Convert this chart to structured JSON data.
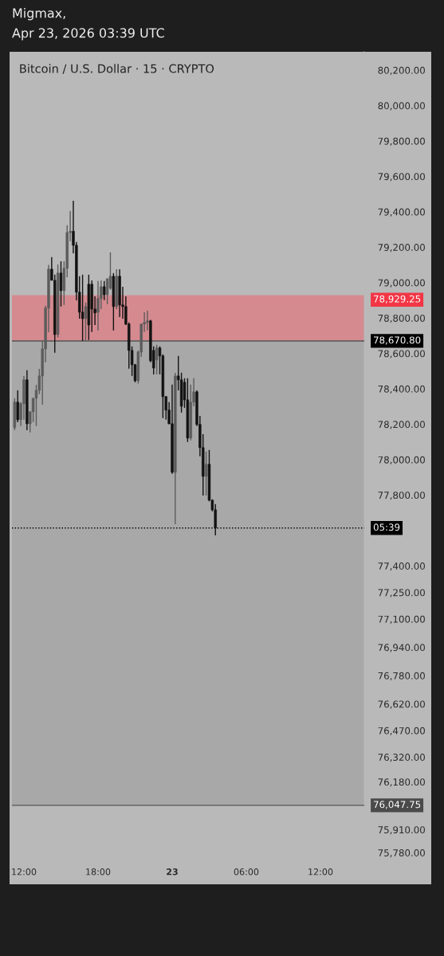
{
  "chart_data": {
    "type": "candlestick",
    "title": "Bitcoin / U.S. Dollar · 15 · CRYPTO",
    "annotations": [
      "Migmax,",
      "Apr 23, 2026 03:39 UTC",
      "05:39"
    ],
    "x": [
      "2026-04-22T11:15",
      "2026-04-22T11:30",
      "2026-04-22T11:45",
      "2026-04-22T12:00",
      "2026-04-22T12:15",
      "2026-04-22T12:30",
      "2026-04-22T12:45",
      "2026-04-22T13:00",
      "2026-04-22T13:15",
      "2026-04-22T13:30",
      "2026-04-22T13:45",
      "2026-04-22T14:00",
      "2026-04-22T14:15",
      "2026-04-22T14:30",
      "2026-04-22T14:45",
      "2026-04-22T15:00",
      "2026-04-22T15:15",
      "2026-04-22T15:30",
      "2026-04-22T15:45",
      "2026-04-22T16:00",
      "2026-04-22T16:15",
      "2026-04-22T16:30",
      "2026-04-22T16:45",
      "2026-04-22T17:00",
      "2026-04-22T17:15",
      "2026-04-22T17:30",
      "2026-04-22T17:45",
      "2026-04-22T18:00",
      "2026-04-22T18:15",
      "2026-04-22T18:30",
      "2026-04-22T18:45",
      "2026-04-22T19:00",
      "2026-04-22T19:15",
      "2026-04-22T19:30",
      "2026-04-22T19:45",
      "2026-04-22T20:00",
      "2026-04-22T20:15",
      "2026-04-22T20:30",
      "2026-04-22T20:45",
      "2026-04-22T21:00",
      "2026-04-22T21:15",
      "2026-04-22T21:30",
      "2026-04-22T21:45",
      "2026-04-22T22:00",
      "2026-04-22T22:15",
      "2026-04-22T22:30",
      "2026-04-22T22:45",
      "2026-04-22T23:00",
      "2026-04-22T23:15",
      "2026-04-22T23:30",
      "2026-04-22T23:45",
      "2026-04-23T00:00",
      "2026-04-23T00:15",
      "2026-04-23T00:30",
      "2026-04-23T00:45",
      "2026-04-23T01:00",
      "2026-04-23T01:15",
      "2026-04-23T01:30",
      "2026-04-23T01:45",
      "2026-04-23T02:00",
      "2026-04-23T02:15",
      "2026-04-23T02:30",
      "2026-04-23T02:45",
      "2026-04-23T03:00",
      "2026-04-23T03:15",
      "2026-04-23T03:30"
    ],
    "ohlc": [
      [
        78181,
        78347,
        78167,
        78325
      ],
      [
        78325,
        78392,
        78212,
        78226
      ],
      [
        78226,
        78325,
        78190,
        78316
      ],
      [
        78316,
        78473,
        78226,
        78451
      ],
      [
        78451,
        78505,
        78167,
        78203
      ],
      [
        78203,
        78271,
        78154,
        78271
      ],
      [
        78271,
        78347,
        78212,
        78347
      ],
      [
        78347,
        78423,
        78190,
        78392
      ],
      [
        78392,
        78513,
        78370,
        78473
      ],
      [
        78473,
        78671,
        78311,
        78626
      ],
      [
        78626,
        78870,
        78550,
        78856
      ],
      [
        78856,
        79100,
        78720,
        79076
      ],
      [
        79076,
        79144,
        79013,
        79013
      ],
      [
        79013,
        79045,
        78604,
        78707
      ],
      [
        78707,
        79103,
        78690,
        79054
      ],
      [
        79054,
        79121,
        78865,
        78955
      ],
      [
        78955,
        79121,
        78874,
        79081
      ],
      [
        79081,
        79324,
        79031,
        79283
      ],
      [
        79283,
        79405,
        79234,
        79290
      ],
      [
        79290,
        79463,
        79166,
        79211
      ],
      [
        79211,
        79230,
        78900,
        78946
      ],
      [
        78946,
        79036,
        78797,
        78833
      ],
      [
        78833,
        79045,
        78671,
        78797
      ],
      [
        78797,
        78887,
        78671,
        78865
      ],
      [
        78991,
        79045,
        78676,
        78761
      ],
      [
        78991,
        79013,
        78721,
        78851
      ],
      [
        78851,
        78923,
        78761,
        78829
      ],
      [
        78833,
        79009,
        78730,
        78910
      ],
      [
        78910,
        79013,
        78851,
        78977
      ],
      [
        78977,
        79009,
        78901,
        78932
      ],
      [
        78932,
        79022,
        78878,
        79022
      ],
      [
        78968,
        79171,
        78960,
        79036
      ],
      [
        79036,
        79054,
        78730,
        78865
      ],
      [
        78865,
        79076,
        78851,
        79036
      ],
      [
        79036,
        79076,
        78806,
        78874
      ],
      [
        78874,
        78977,
        78797,
        78865
      ],
      [
        78865,
        78923,
        78761,
        78766
      ],
      [
        78766,
        78775,
        78514,
        78617
      ],
      [
        78617,
        78640,
        78473,
        78536
      ],
      [
        78536,
        78541,
        78437,
        78446
      ],
      [
        78446,
        78617,
        78430,
        78608
      ],
      [
        78608,
        78766,
        78581,
        78766
      ],
      [
        78766,
        78833,
        78721,
        78775
      ],
      [
        78775,
        78842,
        78730,
        78784
      ],
      [
        78784,
        78790,
        78550,
        78559
      ],
      [
        78617,
        78640,
        78482,
        78518
      ],
      [
        78563,
        78649,
        78482,
        78631
      ],
      [
        78631,
        78640,
        78482,
        78586
      ],
      [
        78586,
        78595,
        78235,
        78356
      ],
      [
        78356,
        78360,
        78226,
        78280
      ],
      [
        78280,
        78325,
        78200,
        78203
      ],
      [
        78203,
        78424,
        77920,
        77929
      ],
      [
        77929,
        78491,
        77636,
        78473
      ],
      [
        78473,
        78586,
        78392,
        78451
      ],
      [
        78451,
        78491,
        78266,
        78302
      ],
      [
        78437,
        78460,
        78293,
        78338
      ],
      [
        78338,
        78460,
        78100,
        78122
      ],
      [
        78122,
        78424,
        78109,
        78325
      ],
      [
        78325,
        78460,
        78302,
        78383
      ],
      [
        78383,
        78392,
        78190,
        78199
      ],
      [
        78199,
        78248,
        78019,
        78068
      ],
      [
        78068,
        78144,
        77798,
        77906
      ],
      [
        77906,
        78046,
        77798,
        77974
      ],
      [
        77974,
        78055,
        77765,
        77771
      ],
      [
        77771,
        77776,
        77708,
        77717
      ],
      [
        77717,
        77749,
        77573,
        77614
      ]
    ],
    "colors": [
      "#5c5c5c",
      "#121212",
      "#5c5c5c",
      "#5c5c5c",
      "#121212",
      "#5c5c5c",
      "#5c5c5c",
      "#5c5c5c",
      "#5c5c5c",
      "#5c5c5c",
      "#5c5c5c",
      "#5c5c5c",
      "#121212",
      "#121212",
      "#5c5c5c",
      "#121212",
      "#5c5c5c",
      "#5c5c5c",
      "#5c5c5c",
      "#121212",
      "#121212",
      "#121212",
      "#121212",
      "#5c5c5c",
      "#121212",
      "#121212",
      "#121212",
      "#5c5c5c",
      "#5c5c5c",
      "#121212",
      "#5c5c5c",
      "#5c5c5c",
      "#121212",
      "#5c5c5c",
      "#121212",
      "#121212",
      "#121212",
      "#121212",
      "#121212",
      "#121212",
      "#5c5c5c",
      "#5c5c5c",
      "#5c5c5c",
      "#5c5c5c",
      "#121212",
      "#121212",
      "#5c5c5c",
      "#121212",
      "#121212",
      "#121212",
      "#121212",
      "#121212",
      "#5c5c5c",
      "#121212",
      "#121212",
      "#121212",
      "#121212",
      "#5c5c5c",
      "#5c5c5c",
      "#121212",
      "#121212",
      "#121212",
      "#5c5c5c",
      "#121212",
      "#121212",
      "#121212"
    ],
    "xlim": [
      "2026-04-22T11:02",
      "2026-04-23T15:33"
    ],
    "xticks": [
      {
        "value": "2026-04-22T12:00",
        "label": "12:00"
      },
      {
        "value": "2026-04-22T18:00",
        "label": "18:00"
      },
      {
        "value": "2026-04-23T00:00",
        "label": "23"
      },
      {
        "value": "2026-04-23T06:00",
        "label": "06:00"
      },
      {
        "value": "2026-04-23T12:00",
        "label": "12:00"
      }
    ],
    "ylim": [
      75714,
      80304
    ],
    "yticks": [
      {
        "value": 80200,
        "label": "80,200.00"
      },
      {
        "value": 80000,
        "label": "80,000.00"
      },
      {
        "value": 79800,
        "label": "79,800.00"
      },
      {
        "value": 79600,
        "label": "79,600.00"
      },
      {
        "value": 79400,
        "label": "79,400.00"
      },
      {
        "value": 79200,
        "label": "79,200.00"
      },
      {
        "value": 79000,
        "label": "79,000.00"
      },
      {
        "value": 78800,
        "label": "78,800.00"
      },
      {
        "value": 78600,
        "label": "78,600.00"
      },
      {
        "value": 78400,
        "label": "78,400.00"
      },
      {
        "value": 78200,
        "label": "78,200.00"
      },
      {
        "value": 78000,
        "label": "78,000.00"
      },
      {
        "value": 77800,
        "label": "77,800.00"
      },
      {
        "value": 77400,
        "label": "77,400.00"
      },
      {
        "value": 77250,
        "label": "77,250.00"
      },
      {
        "value": 77100,
        "label": "77,100.00"
      },
      {
        "value": 76940,
        "label": "76,940.00"
      },
      {
        "value": 76780,
        "label": "76,780.00"
      },
      {
        "value": 76620,
        "label": "76,620.00"
      },
      {
        "value": 76470,
        "label": "76,470.00"
      },
      {
        "value": 76320,
        "label": "76,320.00"
      },
      {
        "value": 76180,
        "label": "76,180.00"
      },
      {
        "value": 75910,
        "label": "75,910.00"
      },
      {
        "value": 75780,
        "label": "75,780.00"
      }
    ],
    "bands": [
      {
        "axis": "y",
        "from": 76047.75,
        "to": 78670.8,
        "color": "#a8a8a8"
      },
      {
        "axis": "y",
        "from": 78670.8,
        "to": 78929.25,
        "color": "#d58a90",
        "label": "78,929.25"
      }
    ],
    "ref_lines": [
      {
        "axis": "y",
        "value": 78670.8,
        "label": "78,670.80",
        "color": "#555555",
        "line_style": "solid"
      },
      {
        "axis": "y",
        "value": 76047.75,
        "label": "76,047.75",
        "color": "#555555",
        "line_style": "solid"
      },
      {
        "axis": "y",
        "value": 77614,
        "color": "#000000",
        "line_style": "dotted"
      }
    ],
    "grid": false
  }
}
